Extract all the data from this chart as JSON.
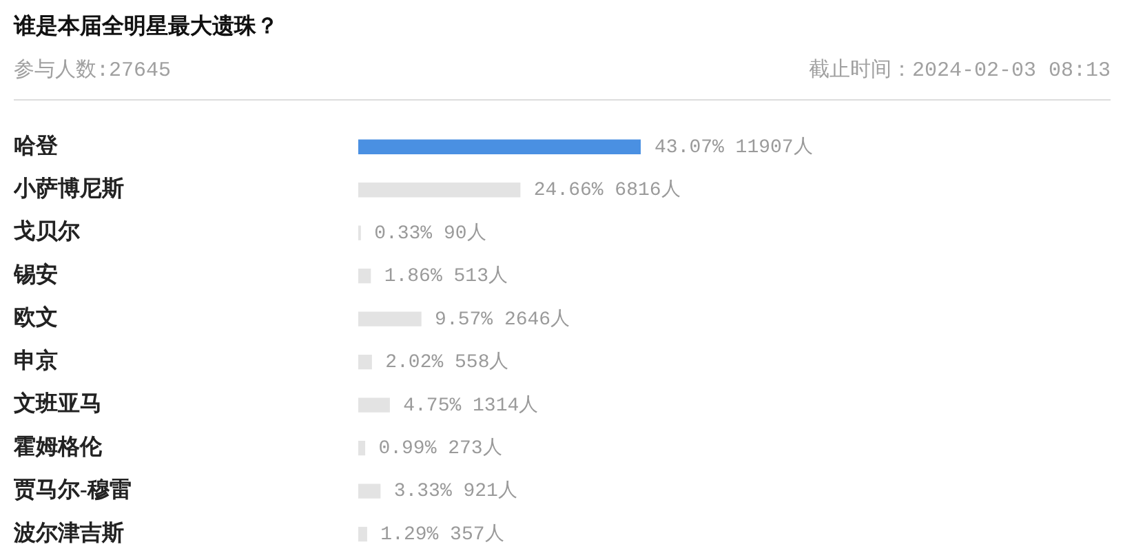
{
  "chart_data": {
    "type": "bar",
    "orientation": "horizontal",
    "title": "谁是本届全明星最大遗珠？",
    "subtitle": "参与人数:27645",
    "annotations": [
      "截止时间：2024-02-03 08:13"
    ],
    "categories": [
      "哈登",
      "小萨博尼斯",
      "戈贝尔",
      "锡安",
      "欧文",
      "申京",
      "文班亚马",
      "霍姆格伦",
      "贾马尔-穆雷",
      "波尔津吉斯"
    ],
    "values": [
      43.07,
      24.66,
      0.33,
      1.86,
      9.57,
      2.02,
      4.75,
      0.99,
      3.33,
      1.29
    ],
    "colors": [
      "#4a90e2",
      "#e3e3e3",
      "#e3e3e3",
      "#e3e3e3",
      "#e3e3e3",
      "#e3e3e3",
      "#e3e3e3",
      "#e3e3e3",
      "#e3e3e3",
      "#e3e3e3"
    ],
    "value_labels": [
      "43.07% 11907人",
      "24.66% 6816人",
      "0.33% 90人",
      "1.86% 513人",
      "9.57% 2646人",
      "2.02% 558人",
      "4.75% 1314人",
      "0.99% 273人",
      "3.33% 921人",
      "1.29% 357人"
    ],
    "tick_labels": "y",
    "grid": false,
    "legend": false
  }
}
